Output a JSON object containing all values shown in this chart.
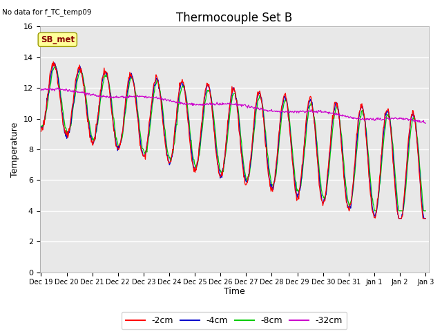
{
  "title": "Thermocouple Set B",
  "subtitle": "No data for f_TC_temp09",
  "ylabel": "Temperature",
  "xlabel": "Time",
  "ylim": [
    0,
    16
  ],
  "yticks": [
    0,
    2,
    4,
    6,
    8,
    10,
    12,
    14,
    16
  ],
  "colors": {
    "2cm": "#ff0000",
    "4cm": "#0000cc",
    "8cm": "#00cc00",
    "32cm": "#cc00cc"
  },
  "legend_labels": [
    "-2cm",
    "-4cm",
    "-8cm",
    "-32cm"
  ],
  "legend_colors": [
    "#ff0000",
    "#0000cc",
    "#00cc00",
    "#cc00cc"
  ],
  "annotation_box": "SB_met",
  "annotation_box_color": "#ffff99",
  "annotation_text_color": "#880000",
  "background_color": "#e8e8e8",
  "n_points": 720,
  "figsize": [
    6.4,
    4.8
  ],
  "dpi": 100
}
